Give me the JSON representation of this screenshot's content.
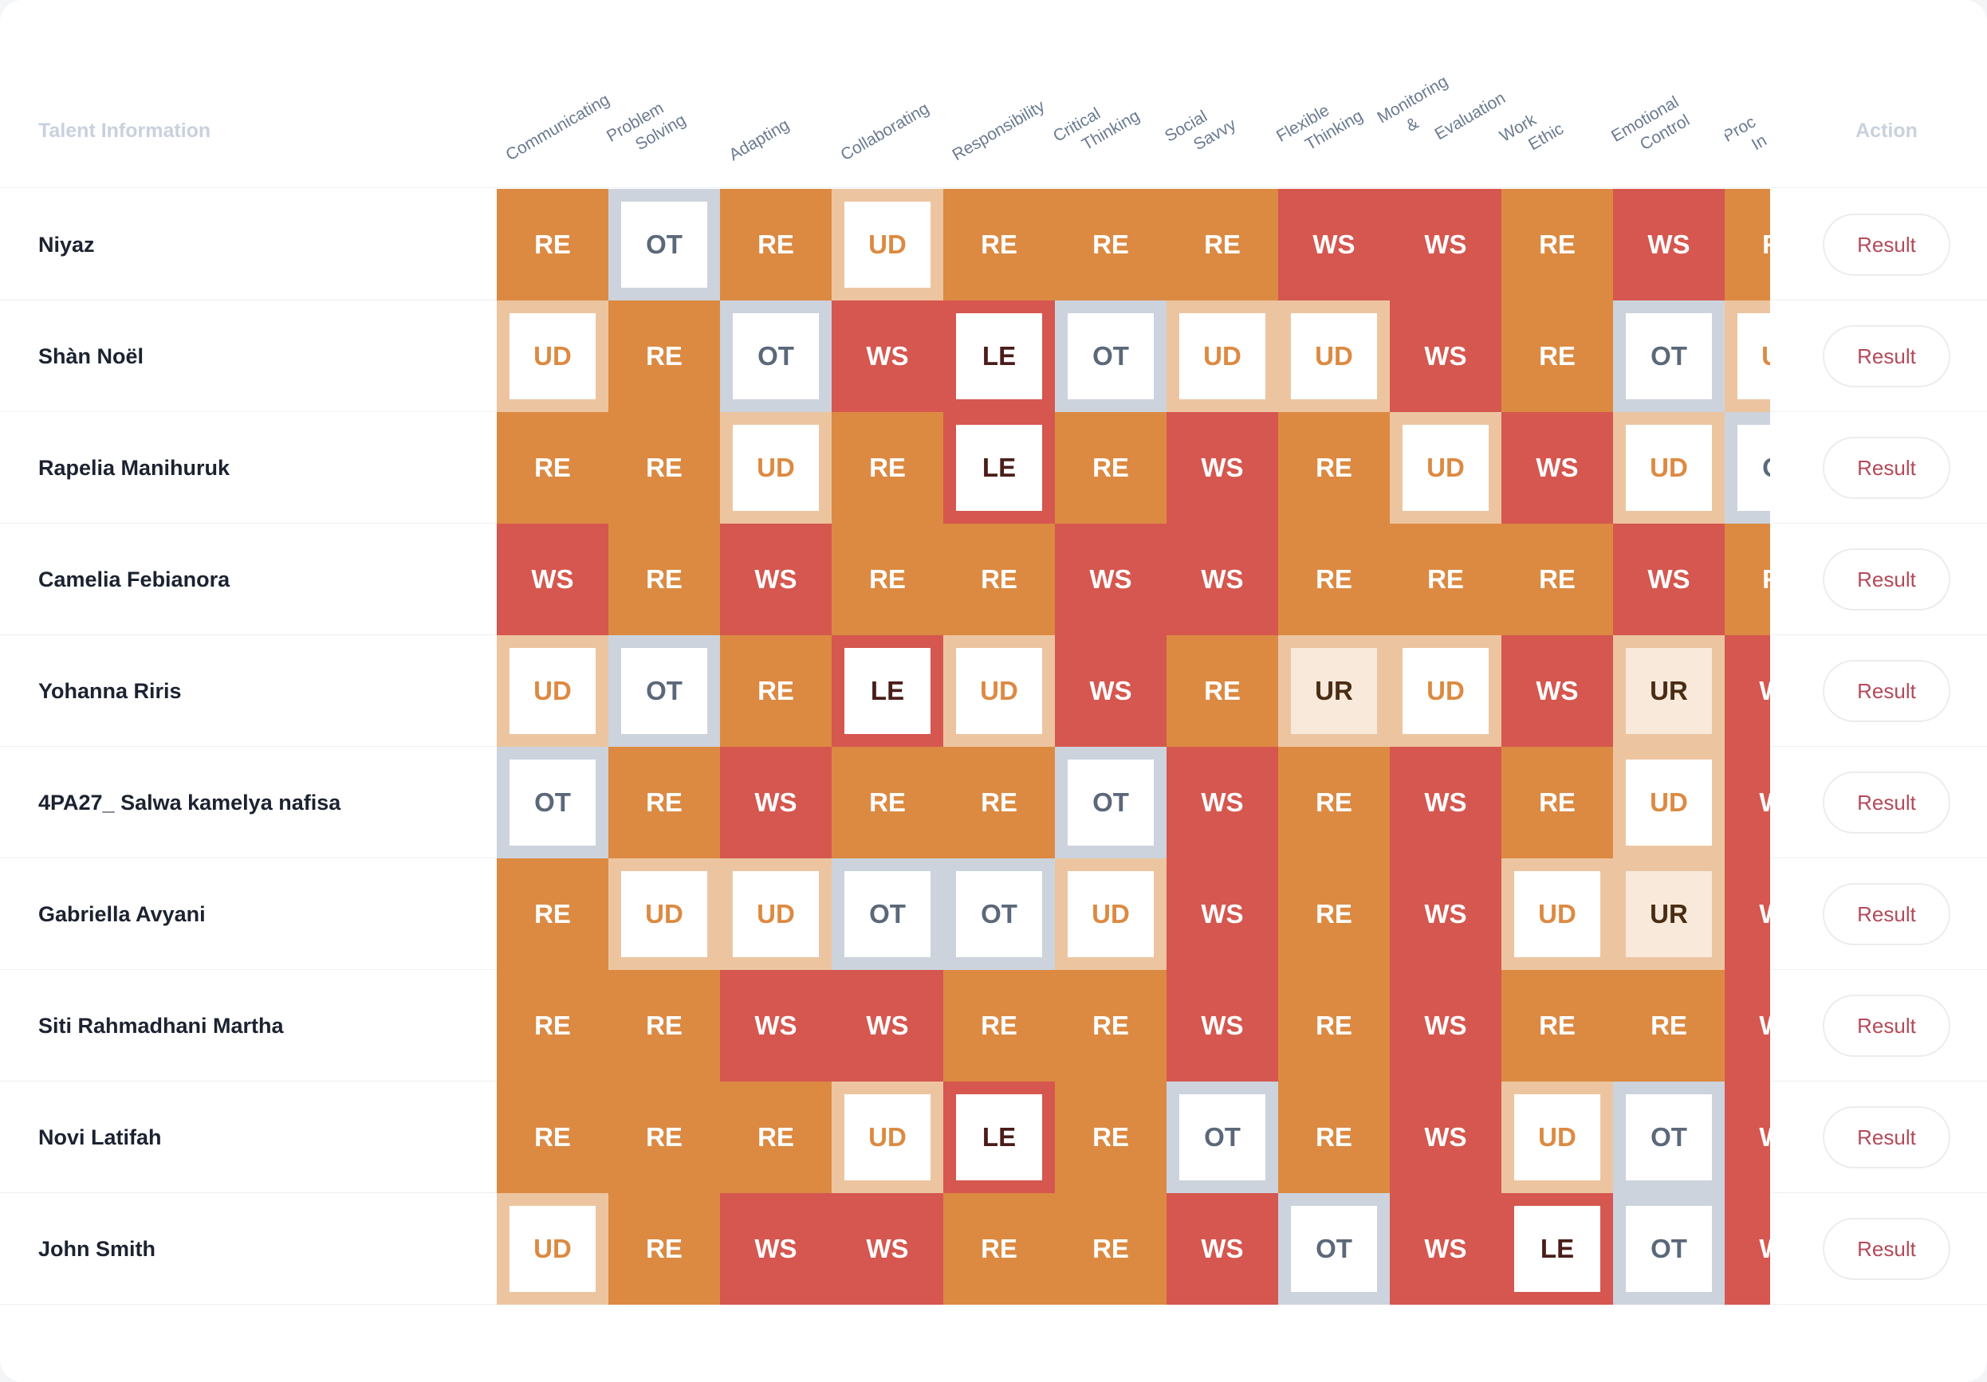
{
  "header": {
    "talent_info_label": "Talent Information",
    "action_label": "Action",
    "columns": [
      [
        "Communicating"
      ],
      [
        "Problem",
        "Solving"
      ],
      [
        "Adapting"
      ],
      [
        "Collaborating"
      ],
      [
        "Responsibility"
      ],
      [
        "Critical",
        "Thinking"
      ],
      [
        "Social",
        "Savvy"
      ],
      [
        "Flexible",
        "Thinking"
      ],
      [
        "Monitoring",
        "&",
        "Evaluation"
      ],
      [
        "Work",
        "Ethic"
      ],
      [
        "Emotional",
        "Control"
      ],
      [
        "Proc",
        "In"
      ]
    ]
  },
  "legend_styles": {
    "RE": {
      "bg": "#dc8a42",
      "box": "",
      "text": "#ffffff"
    },
    "WS": {
      "bg": "#d5574f",
      "box": "",
      "text": "#ffffff"
    },
    "UD": {
      "bg": "#ecc5a0",
      "box": "#ffffff",
      "text": "#dc8a42"
    },
    "OT": {
      "bg": "#ccd3dd",
      "box": "#ffffff",
      "text": "#5b6879"
    },
    "LE": {
      "bg": "#d5574f",
      "box": "#ffffff",
      "text": "#4a1d1a"
    },
    "UR": {
      "bg": "#ecc5a0",
      "box": "#f8e9da",
      "text": "#4a2c14"
    }
  },
  "result_label": "Result",
  "rows": [
    {
      "name": "Niyaz",
      "cells": [
        "RE",
        "OT",
        "RE",
        "UD",
        "RE",
        "RE",
        "RE",
        "WS",
        "WS",
        "RE",
        "WS",
        "RE"
      ]
    },
    {
      "name": "Shàn Noël",
      "cells": [
        "UD",
        "RE",
        "OT",
        "WS",
        "LE",
        "OT",
        "UD",
        "UD",
        "WS",
        "RE",
        "OT",
        "UD"
      ]
    },
    {
      "name": "Rapelia Manihuruk",
      "cells": [
        "RE",
        "RE",
        "UD",
        "RE",
        "LE",
        "RE",
        "WS",
        "RE",
        "UD",
        "WS",
        "UD",
        "OT"
      ]
    },
    {
      "name": "Camelia Febianora",
      "cells": [
        "WS",
        "RE",
        "WS",
        "RE",
        "RE",
        "WS",
        "WS",
        "RE",
        "RE",
        "RE",
        "WS",
        "RE"
      ]
    },
    {
      "name": "Yohanna Riris",
      "cells": [
        "UD",
        "OT",
        "RE",
        "LE",
        "UD",
        "WS",
        "RE",
        "UR",
        "UD",
        "WS",
        "UR",
        "WS"
      ]
    },
    {
      "name": "4PA27_ Salwa kamelya nafisa",
      "cells": [
        "OT",
        "RE",
        "WS",
        "RE",
        "RE",
        "OT",
        "WS",
        "RE",
        "WS",
        "RE",
        "UD",
        "WS"
      ]
    },
    {
      "name": "Gabriella Avyani",
      "cells": [
        "RE",
        "UD",
        "UD",
        "OT",
        "OT",
        "UD",
        "WS",
        "RE",
        "WS",
        "UD",
        "UR",
        "WS"
      ]
    },
    {
      "name": "Siti Rahmadhani Martha",
      "cells": [
        "RE",
        "RE",
        "WS",
        "WS",
        "RE",
        "RE",
        "WS",
        "RE",
        "WS",
        "RE",
        "RE",
        "WS"
      ]
    },
    {
      "name": "Novi Latifah",
      "cells": [
        "RE",
        "RE",
        "RE",
        "UD",
        "LE",
        "RE",
        "OT",
        "RE",
        "WS",
        "UD",
        "OT",
        "WS"
      ]
    },
    {
      "name": "John Smith",
      "cells": [
        "UD",
        "RE",
        "WS",
        "WS",
        "RE",
        "RE",
        "WS",
        "OT",
        "WS",
        "LE",
        "OT",
        "WS"
      ]
    }
  ]
}
